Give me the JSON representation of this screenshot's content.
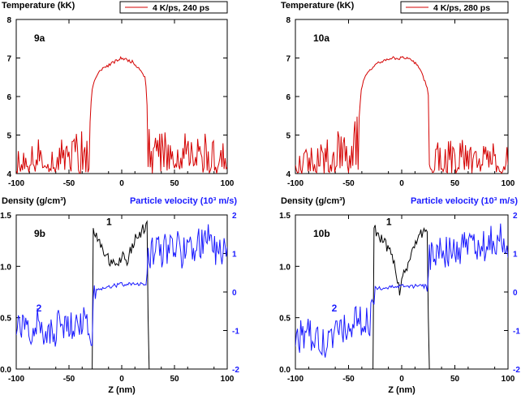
{
  "chart_data": [
    {
      "type": "line",
      "panel_label": "9a",
      "ylabel": "Temperature (kK)",
      "xlim": [
        -100,
        100
      ],
      "ylim": [
        4,
        8
      ],
      "xticks": [
        "-100",
        "-50",
        "0",
        "50",
        "100"
      ],
      "yticks": [
        "4",
        "5",
        "6",
        "7",
        "8"
      ],
      "series": [
        {
          "name": "4 K/ps, 240 ps",
          "color": "#d40000",
          "x": [
            -100,
            -90,
            -80,
            -70,
            -60,
            -50,
            -40,
            -35,
            -30,
            -28,
            -26,
            -20,
            -10,
            0,
            10,
            18,
            22,
            24,
            26,
            30,
            40,
            50,
            60,
            70,
            80,
            90,
            100
          ],
          "y": [
            4.3,
            4.5,
            4.6,
            4.4,
            4.8,
            4.6,
            5.0,
            4.5,
            5.4,
            6.2,
            6.4,
            6.7,
            6.85,
            7.0,
            6.9,
            6.7,
            6.5,
            6.0,
            5.0,
            4.6,
            4.8,
            4.4,
            4.7,
            4.5,
            4.8,
            4.4,
            4.6
          ]
        }
      ]
    },
    {
      "type": "line",
      "panel_label": "10a",
      "ylabel": "Temperature (kK)",
      "xlim": [
        -100,
        100
      ],
      "ylim": [
        4,
        8
      ],
      "xticks": [
        "-100",
        "-50",
        "0",
        "50",
        "100"
      ],
      "yticks": [
        "4",
        "5",
        "6",
        "7",
        "8"
      ],
      "series": [
        {
          "name": "4 K/ps, 280 ps",
          "color": "#d40000",
          "x": [
            -100,
            -90,
            -80,
            -70,
            -60,
            -50,
            -45,
            -40,
            -38,
            -35,
            -30,
            -20,
            -10,
            0,
            10,
            18,
            24,
            28,
            30,
            32,
            40,
            50,
            60,
            70,
            80,
            90,
            100
          ],
          "y": [
            4.3,
            4.5,
            4.4,
            4.6,
            4.8,
            4.5,
            5.0,
            5.8,
            6.2,
            6.5,
            6.7,
            6.9,
            7.0,
            7.0,
            6.95,
            6.7,
            6.2,
            5.6,
            5.0,
            4.6,
            4.7,
            4.5,
            4.6,
            4.4,
            4.6,
            4.4,
            4.5
          ]
        }
      ]
    },
    {
      "type": "line",
      "panel_label": "9b",
      "xlabel": "Z (nm)",
      "ylabel": "Density (g/cm³)",
      "y2label": "Particle velocity (10³ m/s)",
      "xlim": [
        -100,
        100
      ],
      "ylim": [
        0,
        1.5
      ],
      "y2lim": [
        -2,
        2
      ],
      "xticks": [
        "-100",
        "-50",
        "0",
        "50",
        "100"
      ],
      "yticks": [
        "0.0",
        "0.5",
        "1.0",
        "1.5"
      ],
      "y2ticks": [
        "-2",
        "-1",
        "0",
        "1",
        "2"
      ],
      "series": [
        {
          "name": "1",
          "axis": "left",
          "color": "#000000",
          "x": [
            -100,
            -28,
            -27,
            -25,
            -20,
            -15,
            -10,
            -5,
            0,
            5,
            10,
            15,
            20,
            24,
            25,
            26,
            100
          ],
          "y": [
            0.0,
            0.0,
            1.4,
            1.3,
            1.2,
            1.1,
            1.05,
            1.0,
            1.1,
            1.05,
            1.2,
            1.3,
            1.35,
            1.38,
            0.5,
            0.0,
            0.0
          ]
        },
        {
          "name": "2",
          "axis": "right",
          "color": "#1a1aff",
          "x": [
            -100,
            -90,
            -80,
            -70,
            -60,
            -50,
            -40,
            -30,
            -28,
            -27,
            -20,
            -10,
            0,
            10,
            20,
            24,
            25,
            30,
            40,
            50,
            60,
            70,
            80,
            90,
            100
          ],
          "y": [
            -0.9,
            -1.0,
            -0.8,
            -1.2,
            -0.9,
            -0.8,
            -0.7,
            -1.0,
            -1.3,
            0.1,
            0.1,
            0.15,
            0.2,
            0.2,
            0.2,
            0.2,
            1.0,
            1.0,
            1.1,
            1.2,
            1.0,
            1.2,
            1.4,
            1.1,
            1.0
          ]
        }
      ]
    },
    {
      "type": "line",
      "panel_label": "10b",
      "xlabel": "Z (nm)",
      "ylabel": "Density (g/cm³)",
      "y2label": "Particle velocity (10³ m/s)",
      "xlim": [
        -100,
        100
      ],
      "ylim": [
        0,
        1.5
      ],
      "y2lim": [
        -2,
        2
      ],
      "xticks": [
        "-100",
        "-50",
        "0",
        "50",
        "100"
      ],
      "yticks": [
        "0.0",
        "0.5",
        "1.0",
        "1.5"
      ],
      "y2ticks": [
        "-2",
        "-1",
        "0",
        "1",
        "2"
      ],
      "series": [
        {
          "name": "1",
          "axis": "left",
          "color": "#000000",
          "x": [
            -100,
            -27,
            -26,
            -22,
            -15,
            -10,
            -5,
            -2,
            0,
            5,
            10,
            15,
            20,
            24,
            25,
            26,
            100
          ],
          "y": [
            0.0,
            0.0,
            1.4,
            1.3,
            1.2,
            1.1,
            0.95,
            0.75,
            0.9,
            1.0,
            1.15,
            1.25,
            1.35,
            1.38,
            0.5,
            0.0,
            0.0
          ]
        },
        {
          "name": "2",
          "axis": "right",
          "color": "#1a1aff",
          "x": [
            -100,
            -90,
            -80,
            -70,
            -60,
            -50,
            -40,
            -30,
            -27,
            -26,
            -20,
            -10,
            0,
            10,
            20,
            25,
            26,
            30,
            40,
            50,
            60,
            70,
            80,
            90,
            100
          ],
          "y": [
            -1.2,
            -1.1,
            -1.3,
            -1.4,
            -1.0,
            -0.9,
            -0.8,
            -0.7,
            -0.6,
            0.1,
            0.1,
            0.12,
            0.15,
            0.15,
            0.15,
            0.15,
            1.0,
            0.9,
            1.0,
            1.1,
            1.2,
            1.3,
            1.2,
            1.4,
            1.3
          ]
        }
      ]
    }
  ]
}
